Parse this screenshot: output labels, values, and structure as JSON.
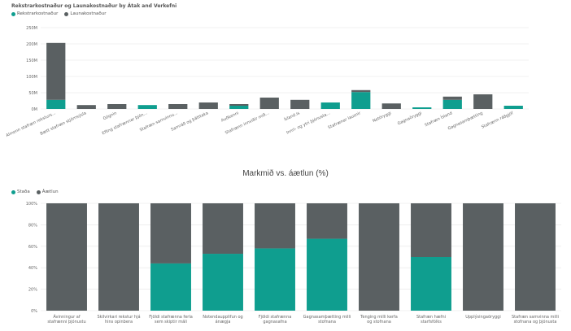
{
  "colors": {
    "teal": "#0f9e8f",
    "gray": "#5a6062"
  },
  "chart_data": [
    {
      "type": "bar",
      "title": "Rekstrarkostnaður og Launakostnaður by Átak and Verkefni",
      "legend": [
        "Rekstrarkostnaður",
        "Launakostnaður"
      ],
      "legend_position": "top-left",
      "grid": true,
      "ylim": [
        0,
        250
      ],
      "yticks": [
        "0M",
        "50M",
        "100M",
        "150M",
        "200M",
        "250M"
      ],
      "ytick_values": [
        0,
        50,
        100,
        150,
        200,
        250
      ],
      "categories": [
        "Almenn stafræn reksturs...",
        "Bætt stafræn stjórnsýsla",
        "Gögnin",
        "Efling stafrænnar þjón...",
        "Stafræn samvinnu...",
        "Samráð og þátttaka",
        "Auðkenni",
        "Stafrænn innviðir mið...",
        "Ísland.is",
        "Innri- og ytri þjónusta...",
        "Stafrænar lausnir",
        "Netöryggi",
        "Gagnaöryggi",
        "Stafræn Ísland",
        "Gagnasamþætting",
        "Stafrænn ráðgjöf"
      ],
      "series": [
        {
          "name": "Rekstrarkostnaður",
          "values": [
            28,
            0,
            0,
            12,
            0,
            0,
            10,
            0,
            0,
            20,
            52,
            0,
            5,
            28,
            0,
            10
          ]
        },
        {
          "name": "Launakostnaður",
          "values": [
            175,
            12,
            15,
            0,
            15,
            20,
            5,
            35,
            28,
            0,
            6,
            17,
            0,
            10,
            45,
            0
          ]
        }
      ]
    },
    {
      "type": "bar",
      "title": "Markmið vs. áætlun (%)",
      "legend": [
        "Staða",
        "Áætlun"
      ],
      "legend_position": "top-left",
      "grid": true,
      "ylim": [
        0,
        100
      ],
      "yticks": [
        "0%",
        "20%",
        "40%",
        "60%",
        "80%",
        "100%"
      ],
      "ytick_values": [
        0,
        20,
        40,
        60,
        80,
        100
      ],
      "categories": [
        "Ávinningur af stafrænni þjónustu",
        "Skilvirkari rekstur hjá hins opinbera",
        "Fjöldi stafrænna ferla sem skiptir máli",
        "Notendaupplifun og ánægja",
        "Fjöldi stafrænna gagnasafna",
        "Gagnasamþætting milli stofnana",
        "Tenging milli kerfa og stofnana",
        "Stafræn hæfni starfsfólks",
        "Upplýsingaöryggi",
        "Stafræn samvinna milli stofnana og þjónusta"
      ],
      "series": [
        {
          "name": "Staða",
          "values": [
            0,
            0,
            44,
            53,
            58,
            67,
            0,
            50,
            0,
            0
          ]
        },
        {
          "name": "Áætlun",
          "values": [
            100,
            100,
            56,
            47,
            42,
            33,
            100,
            50,
            100,
            100
          ]
        }
      ]
    }
  ]
}
